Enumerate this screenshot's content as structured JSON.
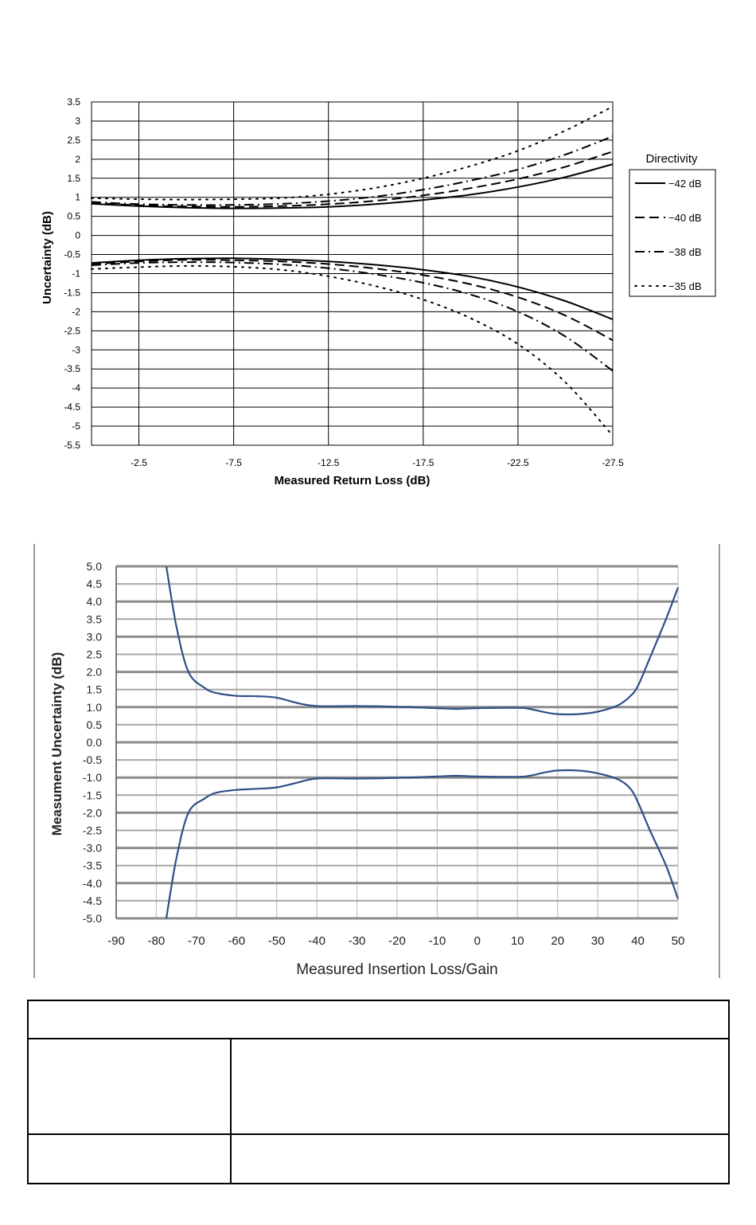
{
  "chart_data": [
    {
      "type": "line",
      "title": "",
      "xlabel": "Measured Return Loss (dB)",
      "ylabel": "Uncertainty (dB)",
      "xlim": [
        0,
        -27.5
      ],
      "ylim": [
        -5.5,
        3.5
      ],
      "xticks": [
        -2.5,
        -7.5,
        -12.5,
        -17.5,
        -22.5,
        -27.5
      ],
      "xtick_labels": [
        "-2.5",
        "-7.5",
        "-12.5",
        "-17.5",
        "-22.5",
        "-27.5"
      ],
      "yticks": [
        3.5,
        3,
        2.5,
        2,
        1.5,
        1,
        0.5,
        0,
        -0.5,
        -1,
        -1.5,
        -2,
        -2.5,
        -3,
        -3.5,
        -4,
        -4.5,
        -5,
        -5.5
      ],
      "ytick_labels": [
        "3.5",
        "3",
        "2.5",
        "2",
        "1.5",
        "1",
        "0.5",
        "0",
        "-0.5",
        "-1",
        "-1.5",
        "-2",
        "-2.5",
        "-3",
        "-3.5",
        "-4",
        "-4.5",
        "-5",
        "-5.5"
      ],
      "grid": true,
      "legend_title": "Directivity",
      "legend_position": "right",
      "x": [
        0,
        -2.5,
        -5,
        -7.5,
        -10,
        -12.5,
        -15,
        -17.5,
        -20,
        -22.5,
        -25,
        -27.5
      ],
      "series": [
        {
          "name": "−42 dB",
          "style": "solid",
          "upper": [
            0.83,
            0.77,
            0.73,
            0.71,
            0.72,
            0.75,
            0.82,
            0.93,
            1.07,
            1.27,
            1.53,
            1.87
          ],
          "lower": [
            -0.72,
            -0.65,
            -0.61,
            -0.6,
            -0.63,
            -0.68,
            -0.77,
            -0.9,
            -1.08,
            -1.35,
            -1.72,
            -2.2
          ]
        },
        {
          "name": "−40 dB",
          "style": "dashed",
          "upper": [
            0.86,
            0.79,
            0.76,
            0.75,
            0.77,
            0.82,
            0.91,
            1.05,
            1.24,
            1.48,
            1.8,
            2.2
          ],
          "lower": [
            -0.75,
            -0.68,
            -0.64,
            -0.65,
            -0.68,
            -0.75,
            -0.87,
            -1.04,
            -1.28,
            -1.62,
            -2.1,
            -2.75
          ]
        },
        {
          "name": "−38 dB",
          "style": "dashdot",
          "upper": [
            0.88,
            0.82,
            0.8,
            0.8,
            0.83,
            0.9,
            1.02,
            1.2,
            1.44,
            1.73,
            2.12,
            2.6
          ],
          "lower": [
            -0.78,
            -0.72,
            -0.7,
            -0.71,
            -0.76,
            -0.86,
            -1.02,
            -1.24,
            -1.55,
            -2.0,
            -2.65,
            -3.55
          ]
        },
        {
          "name": "−35 dB",
          "style": "dotted",
          "upper": [
            0.98,
            0.95,
            0.94,
            0.95,
            0.98,
            1.08,
            1.25,
            1.5,
            1.82,
            2.22,
            2.75,
            3.38
          ],
          "lower": [
            -0.88,
            -0.83,
            -0.8,
            -0.82,
            -0.9,
            -1.07,
            -1.33,
            -1.68,
            -2.17,
            -2.85,
            -3.85,
            -5.25
          ]
        }
      ]
    },
    {
      "type": "line",
      "title": "",
      "xlabel": "Measured Insertion Loss/Gain",
      "ylabel": "Measument Uncertainty (dB)",
      "xlim": [
        -90,
        50
      ],
      "ylim": [
        -5.0,
        5.0
      ],
      "xticks": [
        -90,
        -80,
        -70,
        -60,
        -50,
        -40,
        -30,
        -20,
        -10,
        0,
        10,
        20,
        30,
        40,
        50
      ],
      "xtick_labels": [
        "-90",
        "-80",
        "-70",
        "-60",
        "-50",
        "-40",
        "-30",
        "-20",
        "-10",
        "0",
        "10",
        "20",
        "30",
        "40",
        "50"
      ],
      "yticks": [
        5,
        4.5,
        4,
        3.5,
        3,
        2.5,
        2,
        1.5,
        1,
        0.5,
        0,
        -0.5,
        -1,
        -1.5,
        -2,
        -2.5,
        -3,
        -3.5,
        -4,
        -4.5,
        -5
      ],
      "ytick_labels": [
        "5.0",
        "4.5",
        "4.0",
        "3.5",
        "3.0",
        "2.5",
        "2.0",
        "1.5",
        "1.0",
        "0.5",
        "0.0",
        "-0.5",
        "-1.0",
        "-1.5",
        "-2.0",
        "-2.5",
        "-3.0",
        "-3.5",
        "-4.0",
        "-4.5",
        "-5.0"
      ],
      "grid": true,
      "line_color": "#2f4f86",
      "series": [
        {
          "name": "upper",
          "x": [
            -77.5,
            -75,
            -72,
            -68,
            -65,
            -60,
            -55,
            -50,
            -45,
            -40,
            -30,
            -20,
            -10,
            -5,
            0,
            10,
            13,
            17,
            20,
            25,
            30,
            35,
            38,
            40,
            43,
            47,
            50
          ],
          "y": [
            5.0,
            3.3,
            2.0,
            1.55,
            1.4,
            1.32,
            1.31,
            1.27,
            1.12,
            1.03,
            1.03,
            1.01,
            0.97,
            0.95,
            0.97,
            0.98,
            0.95,
            0.85,
            0.8,
            0.8,
            0.87,
            1.05,
            1.3,
            1.6,
            2.4,
            3.5,
            4.4
          ]
        },
        {
          "name": "lower",
          "x": [
            -77.5,
            -75,
            -72,
            -68,
            -65,
            -60,
            -55,
            -50,
            -45,
            -40,
            -30,
            -20,
            -10,
            -5,
            0,
            10,
            13,
            17,
            20,
            25,
            30,
            35,
            38,
            40,
            43,
            47,
            50
          ],
          "y": [
            -5.0,
            -3.3,
            -2.0,
            -1.6,
            -1.43,
            -1.35,
            -1.32,
            -1.28,
            -1.15,
            -1.03,
            -1.03,
            -1.01,
            -0.97,
            -0.95,
            -0.97,
            -0.98,
            -0.95,
            -0.85,
            -0.8,
            -0.8,
            -0.88,
            -1.05,
            -1.3,
            -1.7,
            -2.5,
            -3.5,
            -4.45
          ]
        }
      ]
    }
  ]
}
